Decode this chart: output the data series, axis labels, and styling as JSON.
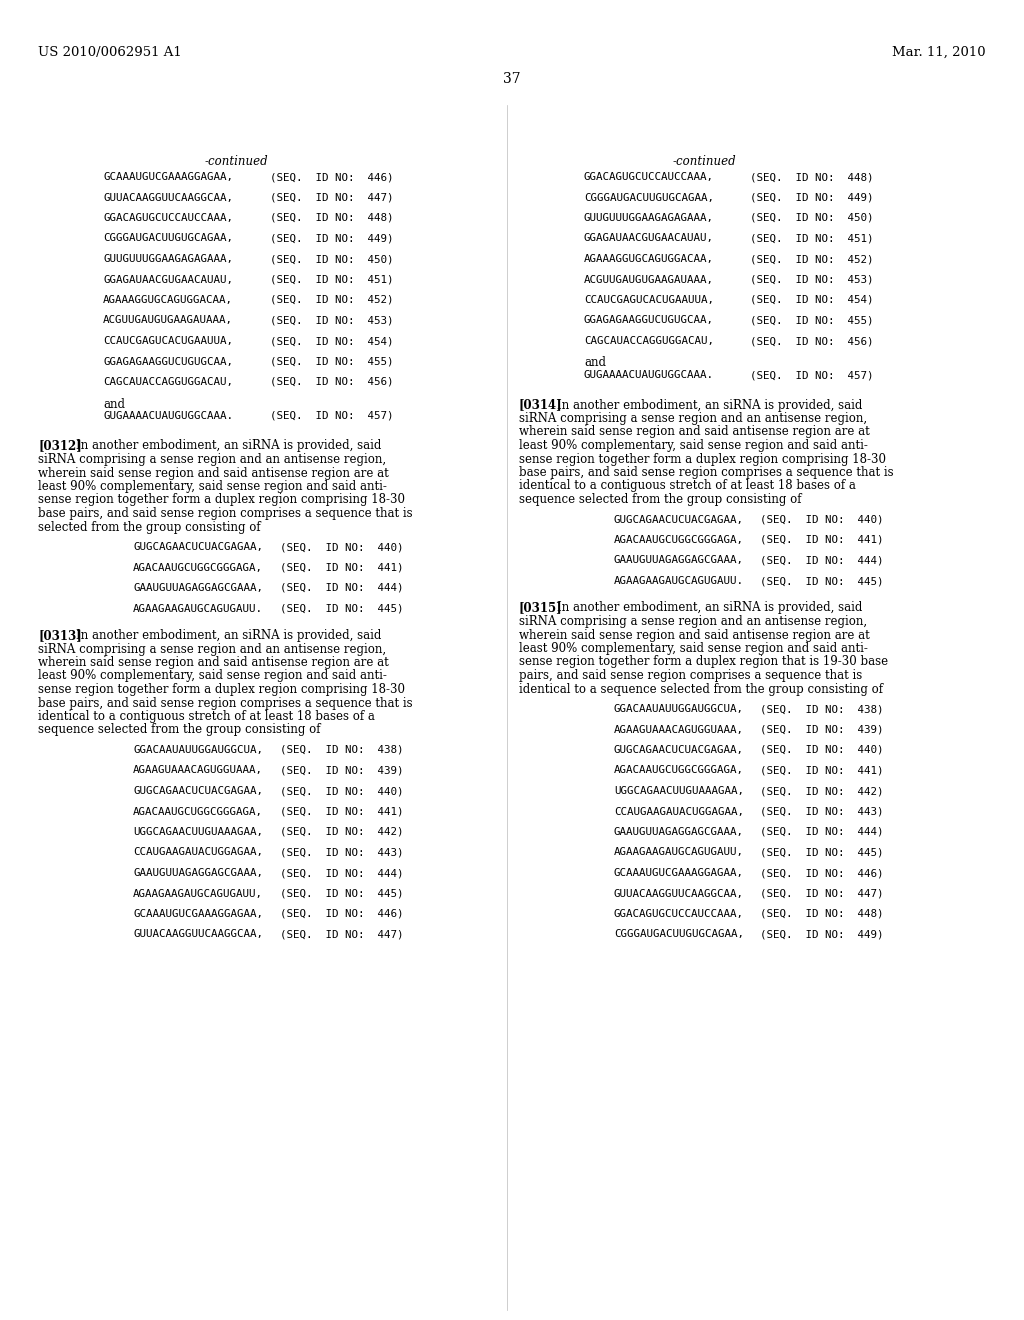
{
  "bg": "#ffffff",
  "header_left": "US 2010/0062951 A1",
  "header_right": "Mar. 11, 2010",
  "page_number": "37",
  "left_continued": "-continued",
  "right_continued": "-continued",
  "left_seqs_top": [
    [
      "GCAAAUGUCGAAAGGAGAA,",
      "(SEQ.  ID NO:  446)"
    ],
    [
      "GUUACAAGGUUCAAGGCAA,",
      "(SEQ.  ID NO:  447)"
    ],
    [
      "GGACAGUGCUCCAUCCAAA,",
      "(SEQ.  ID NO:  448)"
    ],
    [
      "CGGGAUGACUUGUGCAGAA,",
      "(SEQ.  ID NO:  449)"
    ],
    [
      "GUUGUUUGGAAGAGAGAAA,",
      "(SEQ.  ID NO:  450)"
    ],
    [
      "GGAGAUAACGUGAACAUAU,",
      "(SEQ.  ID NO:  451)"
    ],
    [
      "AGAAAGGUGCAGUGGACAA,",
      "(SEQ.  ID NO:  452)"
    ],
    [
      "ACGUUGAUGUGAAGAUAAA,",
      "(SEQ.  ID NO:  453)"
    ],
    [
      "CCAUCGAGUCACUGAAUUA,",
      "(SEQ.  ID NO:  454)"
    ],
    [
      "GGAGAGAAGGUCUGUGCAA,",
      "(SEQ.  ID NO:  455)"
    ],
    [
      "CAGCAUACCAGGUGGACAU,",
      "(SEQ.  ID NO:  456)",
      "and"
    ],
    [
      "GUGAAAACUAUGUGGCAAA.",
      "(SEQ.  ID NO:  457)"
    ]
  ],
  "right_seqs_top": [
    [
      "GGACAGUGCUCCAUCCAAA,",
      "(SEQ.  ID NO:  448)"
    ],
    [
      "CGGGAUGACUUGUGCAGAA,",
      "(SEQ.  ID NO:  449)"
    ],
    [
      "GUUGUUUGGAAGAGAGAAA,",
      "(SEQ.  ID NO:  450)"
    ],
    [
      "GGAGAUAACGUGAACAUAU,",
      "(SEQ.  ID NO:  451)"
    ],
    [
      "AGAAAGGUGCAGUGGACAA,",
      "(SEQ.  ID NO:  452)"
    ],
    [
      "ACGUUGAUGUGAAGAUAAA,",
      "(SEQ.  ID NO:  453)"
    ],
    [
      "CCAUCGAGUCACUGAAUUA,",
      "(SEQ.  ID NO:  454)"
    ],
    [
      "GGAGAGAAGGUCUGUGCAA,",
      "(SEQ.  ID NO:  455)"
    ],
    [
      "CAGCAUACCAGGUGGACAU,",
      "(SEQ.  ID NO:  456)",
      "and"
    ],
    [
      "GUGAAAACUAUGUGGCAAA.",
      "(SEQ.  ID NO:  457)"
    ]
  ],
  "para312_bold": "[0312]",
  "para312_text": "    In another embodiment, an siRNA is provided, said\nsiRNA comprising a sense region and an antisense region,\nwherein said sense region and said antisense region are at\nleast 90% complementary, said sense region and said anti-\nsense region together form a duplex region comprising 18-30\nbase pairs, and said sense region comprises a sequence that is\nselected from the group consisting of",
  "seqs_312": [
    [
      "GUGCAGAACUCUACGAGAA,",
      "(SEQ.  ID NO:  440)"
    ],
    [
      "AGACAAUGCUGGCGGGAGA,",
      "(SEQ.  ID NO:  441)"
    ],
    [
      "GAAUGUUAGAGGAGCGAAA,",
      "(SEQ.  ID NO:  444)"
    ],
    [
      "AGAAGAAGAUGCAGUGAUU.",
      "(SEQ.  ID NO:  445)"
    ]
  ],
  "para313_bold": "[0313]",
  "para313_text": "    In another embodiment, an siRNA is provided, said\nsiRNA comprising a sense region and an antisense region,\nwherein said sense region and said antisense region are at\nleast 90% complementary, said sense region and said anti-\nsense region together form a duplex region comprising 18-30\nbase pairs, and said sense region comprises a sequence that is\nidentical to a contiguous stretch of at least 18 bases of a\nsequence selected from the group consisting of",
  "seqs_313": [
    [
      "GGACAAUAUUGGAUGGCUA,",
      "(SEQ.  ID NO:  438)"
    ],
    [
      "AGAAGUAAACAGUGGUAAA,",
      "(SEQ.  ID NO:  439)"
    ],
    [
      "GUGCAGAACUCUACGAGAA,",
      "(SEQ.  ID NO:  440)"
    ],
    [
      "AGACAAUGCUGGCGGGAGA,",
      "(SEQ.  ID NO:  441)"
    ],
    [
      "UGGCAGAACUUGUAAAGAA,",
      "(SEQ.  ID NO:  442)"
    ],
    [
      "CCAUGAAGAUACUGGAGAA,",
      "(SEQ.  ID NO:  443)"
    ],
    [
      "GAAUGUUAGAGGAGCGAAA,",
      "(SEQ.  ID NO:  444)"
    ],
    [
      "AGAAGAAGAUGCAGUGAUU,",
      "(SEQ.  ID NO:  445)"
    ],
    [
      "GCAAAUGUCGAAAGGAGAA,",
      "(SEQ.  ID NO:  446)"
    ],
    [
      "GUUACAAGGUUCAAGGCAA,",
      "(SEQ.  ID NO:  447)"
    ]
  ],
  "para314_bold": "[0314]",
  "para314_text": "    In another embodiment, an siRNA is provided, said\nsiRNA comprising a sense region and an antisense region,\nwherein said sense region and said antisense region are at\nleast 90% complementary, said sense region and said anti-\nsense region together form a duplex region comprising 18-30\nbase pairs, and said sense region comprises a sequence that is\nidentical to a contiguous stretch of at least 18 bases of a\nsequence selected from the group consisting of",
  "seqs_314": [
    [
      "GUGCAGAACUCUACGAGAA,",
      "(SEQ.  ID NO:  440)"
    ],
    [
      "AGACAAUGCUGGCGGGAGA,",
      "(SEQ.  ID NO:  441)"
    ],
    [
      "GAAUGUUAGAGGAGCGAAA,",
      "(SEQ.  ID NO:  444)"
    ],
    [
      "AGAAGAAGAUGCAGUGAUU.",
      "(SEQ.  ID NO:  445)"
    ]
  ],
  "para315_bold": "[0315]",
  "para315_text": "    In another embodiment, an siRNA is provided, said\nsiRNA comprising a sense region and an antisense region,\nwherein said sense region and said antisense region are at\nleast 90% complementary, said sense region and said anti-\nsense region together form a duplex region that is 19-30 base\npairs, and said sense region comprises a sequence that is\nidentical to a sequence selected from the group consisting of",
  "seqs_315": [
    [
      "GGACAAUAUUGGAUGGCUA,",
      "(SEQ.  ID NO:  438)"
    ],
    [
      "AGAAGUAAACAGUGGUAAA,",
      "(SEQ.  ID NO:  439)"
    ],
    [
      "GUGCAGAACUCUACGAGAA,",
      "(SEQ.  ID NO:  440)"
    ],
    [
      "AGACAAUGCUGGCGGGAGA,",
      "(SEQ.  ID NO:  441)"
    ],
    [
      "UGGCAGAACUUGUAAAGAA,",
      "(SEQ.  ID NO:  442)"
    ],
    [
      "CCAUGAAGAUACUGGAGAA,",
      "(SEQ.  ID NO:  443)"
    ],
    [
      "GAAUGUUAGAGGAGCGAAA,",
      "(SEQ.  ID NO:  444)"
    ],
    [
      "AGAAGAAGAUGCAGUGAUU,",
      "(SEQ.  ID NO:  445)"
    ],
    [
      "GCAAAUGUCGAAAGGAGAA,",
      "(SEQ.  ID NO:  446)"
    ],
    [
      "GUUACAAGGUUCAAGGCAA,",
      "(SEQ.  ID NO:  447)"
    ],
    [
      "GGACAGUGCUCCAUCCAAA,",
      "(SEQ.  ID NO:  448)"
    ],
    [
      "CGGGAUGACUUGUGCAGAA,",
      "(SEQ.  ID NO:  449)"
    ]
  ]
}
